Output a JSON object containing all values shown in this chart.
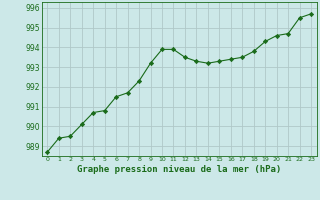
{
  "x": [
    0,
    1,
    2,
    3,
    4,
    5,
    6,
    7,
    8,
    9,
    10,
    11,
    12,
    13,
    14,
    15,
    16,
    17,
    18,
    19,
    20,
    21,
    22,
    23
  ],
  "y": [
    988.7,
    989.4,
    989.5,
    990.1,
    990.7,
    990.8,
    991.5,
    991.7,
    992.3,
    993.2,
    993.9,
    993.9,
    993.5,
    993.3,
    993.2,
    993.3,
    993.4,
    993.5,
    993.8,
    994.3,
    994.6,
    994.7,
    995.5,
    995.7
  ],
  "line_color": "#1a6b1a",
  "marker": "D",
  "marker_size": 2.2,
  "bg_color": "#cce8e8",
  "grid_color": "#b0c8c8",
  "xlabel": "Graphe pression niveau de la mer (hPa)",
  "xlabel_color": "#1a6b1a",
  "tick_color": "#1a6b1a",
  "ylim": [
    988.5,
    996.3
  ],
  "yticks": [
    989,
    990,
    991,
    992,
    993,
    994,
    995,
    996
  ],
  "xlim": [
    -0.5,
    23.5
  ],
  "xticks": [
    0,
    1,
    2,
    3,
    4,
    5,
    6,
    7,
    8,
    9,
    10,
    11,
    12,
    13,
    14,
    15,
    16,
    17,
    18,
    19,
    20,
    21,
    22,
    23
  ],
  "xtick_labels": [
    "0",
    "1",
    "2",
    "3",
    "4",
    "5",
    "6",
    "7",
    "8",
    "9",
    "10",
    "11",
    "12",
    "13",
    "14",
    "15",
    "16",
    "17",
    "18",
    "19",
    "20",
    "21",
    "22",
    "23"
  ]
}
